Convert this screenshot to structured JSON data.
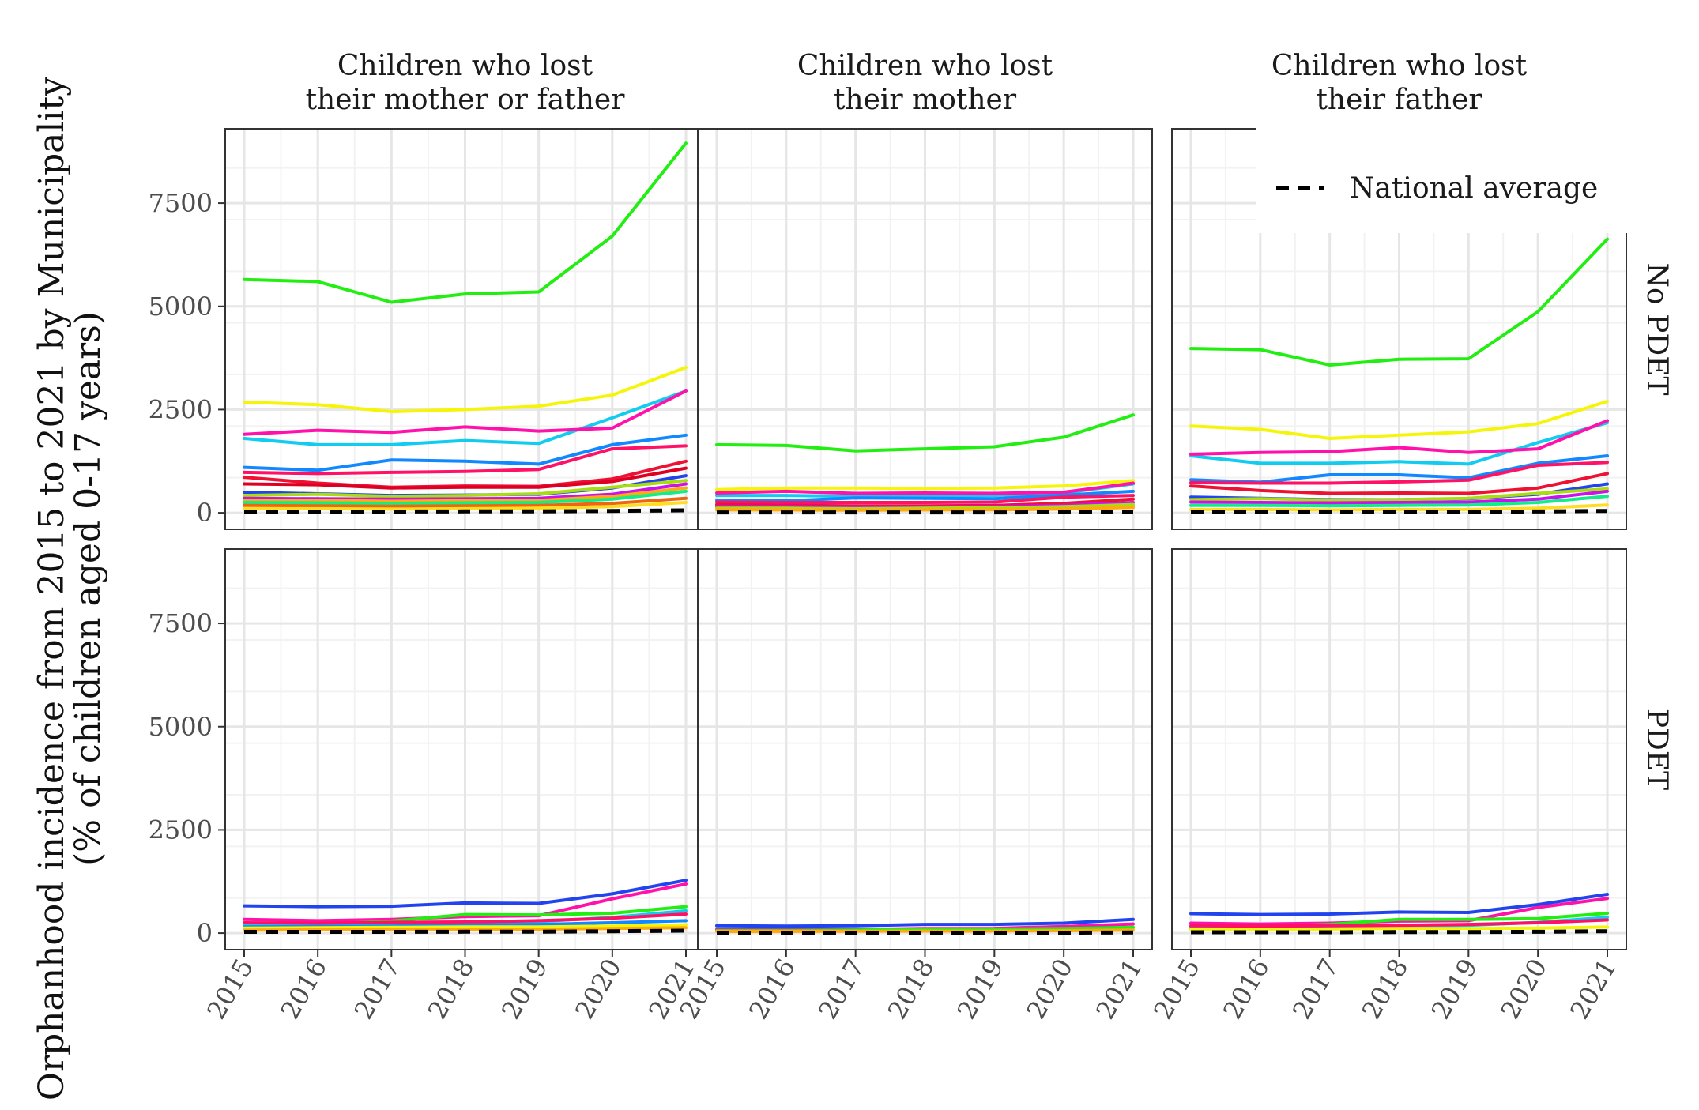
{
  "figure": {
    "ylabel_line1": "Orphanhood incidence from 2015 to 2021 by Municipality",
    "ylabel_line2": "(% of children aged 0-17 years)",
    "legend_label": "National average"
  },
  "chart_data": {
    "type": "line",
    "x": [
      2015,
      2016,
      2017,
      2018,
      2019,
      2020,
      2021
    ],
    "ylim": [
      -400,
      9300
    ],
    "yticks": [
      0,
      2500,
      5000,
      7500
    ],
    "grid": true,
    "legend_placement": "top-right",
    "columns": [
      [
        "Children who lost",
        "their mother or father"
      ],
      [
        "Children who lost",
        "their mother"
      ],
      [
        "Children who lost",
        "their father"
      ]
    ],
    "rows": [
      "No PDET",
      "PDET"
    ],
    "legend": [
      {
        "label": "National average",
        "style": "dashed",
        "color": "#000000"
      }
    ],
    "panels": [
      {
        "row": "No PDET",
        "column": 0,
        "series": [
          {
            "color": "#22ee11",
            "values": [
              5650,
              5600,
              5100,
              5300,
              5350,
              6700,
              8950
            ]
          },
          {
            "color": "#f5f50a",
            "values": [
              2680,
              2620,
              2450,
              2500,
              2580,
              2850,
              3520
            ]
          },
          {
            "color": "#11ccee",
            "values": [
              1800,
              1650,
              1650,
              1750,
              1680,
              2300,
              2950
            ]
          },
          {
            "color": "#ff11aa",
            "values": [
              1900,
              2000,
              1950,
              2080,
              1980,
              2050,
              2950
            ]
          },
          {
            "color": "#1188ff",
            "values": [
              1100,
              1030,
              1280,
              1250,
              1180,
              1650,
              1880
            ]
          },
          {
            "color": "#ff1166",
            "values": [
              980,
              950,
              980,
              1000,
              1050,
              1550,
              1620
            ]
          },
          {
            "color": "#ee1133",
            "values": [
              860,
              720,
              620,
              650,
              640,
              820,
              1250
            ]
          },
          {
            "color": "#dd0022",
            "values": [
              700,
              680,
              600,
              620,
              620,
              760,
              1080
            ]
          },
          {
            "color": "#2244ee",
            "values": [
              500,
              460,
              420,
              430,
              450,
              600,
              900
            ]
          },
          {
            "color": "#aadd11",
            "values": [
              420,
              450,
              400,
              420,
              460,
              620,
              780
            ]
          },
          {
            "color": "#cc11ee",
            "values": [
              350,
              340,
              330,
              340,
              350,
              450,
              700
            ]
          },
          {
            "color": "#ffaa11",
            "values": [
              300,
              300,
              280,
              290,
              300,
              400,
              600
            ]
          },
          {
            "color": "#11ee88",
            "values": [
              250,
              240,
              230,
              240,
              250,
              330,
              520
            ]
          },
          {
            "color": "#ee6611",
            "values": [
              180,
              170,
              160,
              170,
              180,
              230,
              350
            ]
          },
          {
            "color": "#ffdd22",
            "values": [
              100,
              100,
              90,
              100,
              110,
              150,
              250
            ]
          }
        ],
        "national_average": [
          30,
          30,
          30,
          35,
          35,
          45,
          60
        ]
      },
      {
        "row": "No PDET",
        "column": 1,
        "series": [
          {
            "color": "#22ee11",
            "values": [
              1650,
              1630,
              1500,
              1550,
              1600,
              1830,
              2370
            ]
          },
          {
            "color": "#f5f50a",
            "values": [
              560,
              600,
              600,
              590,
              600,
              650,
              780
            ]
          },
          {
            "color": "#11ccee",
            "values": [
              420,
              420,
              400,
              410,
              420,
              480,
              700
            ]
          },
          {
            "color": "#ff11aa",
            "values": [
              480,
              520,
              470,
              480,
              470,
              500,
              720
            ]
          },
          {
            "color": "#1188ff",
            "values": [
              300,
              290,
              360,
              350,
              340,
              430,
              520
            ]
          },
          {
            "color": "#ff1166",
            "values": [
              260,
              250,
              250,
              250,
              260,
              380,
              420
            ]
          },
          {
            "color": "#ee1133",
            "values": [
              200,
              180,
              170,
              170,
              180,
              230,
              330
            ]
          },
          {
            "color": "#cc11ee",
            "values": [
              150,
              150,
              140,
              140,
              150,
              180,
              250
            ]
          },
          {
            "color": "#aadd11",
            "values": [
              110,
              110,
              100,
              110,
              120,
              150,
              200
            ]
          },
          {
            "color": "#ffaa11",
            "values": [
              70,
              70,
              65,
              70,
              75,
              90,
              130
            ]
          }
        ],
        "national_average": [
          10,
          10,
          10,
          10,
          10,
          12,
          15
        ]
      },
      {
        "row": "No PDET",
        "column": 2,
        "series": [
          {
            "color": "#22ee11",
            "values": [
              3980,
              3950,
              3580,
              3720,
              3730,
              4870,
              6630
            ]
          },
          {
            "color": "#f5f50a",
            "values": [
              2100,
              2020,
              1800,
              1880,
              1960,
              2160,
              2700
            ]
          },
          {
            "color": "#11ccee",
            "values": [
              1380,
              1200,
              1200,
              1240,
              1180,
              1700,
              2180
            ]
          },
          {
            "color": "#ff11aa",
            "values": [
              1420,
              1460,
              1480,
              1580,
              1460,
              1550,
              2230
            ]
          },
          {
            "color": "#1188ff",
            "values": [
              800,
              740,
              920,
              920,
              850,
              1200,
              1380
            ]
          },
          {
            "color": "#ff1166",
            "values": [
              730,
              720,
              720,
              750,
              790,
              1150,
              1220
            ]
          },
          {
            "color": "#ee1133",
            "values": [
              650,
              540,
              470,
              480,
              470,
              600,
              950
            ]
          },
          {
            "color": "#2244ee",
            "values": [
              380,
              350,
              320,
              320,
              340,
              450,
              700
            ]
          },
          {
            "color": "#aadd11",
            "values": [
              320,
              340,
              310,
              320,
              350,
              470,
              580
            ]
          },
          {
            "color": "#cc11ee",
            "values": [
              260,
              250,
              240,
              250,
              260,
              330,
              520
            ]
          },
          {
            "color": "#11ee88",
            "values": [
              180,
              180,
              170,
              180,
              190,
              250,
              400
            ]
          },
          {
            "color": "#ffdd22",
            "values": [
              80,
              80,
              70,
              80,
              80,
              110,
              190
            ]
          }
        ],
        "national_average": [
          20,
          20,
          20,
          25,
          25,
          33,
          45
        ]
      },
      {
        "row": "PDET",
        "column": 0,
        "series": [
          {
            "color": "#2244ee",
            "values": [
              660,
              640,
              650,
              730,
              720,
              950,
              1280
            ]
          },
          {
            "color": "#ff11aa",
            "values": [
              330,
              300,
              330,
              400,
              420,
              830,
              1190
            ]
          },
          {
            "color": "#22ee11",
            "values": [
              200,
              210,
              290,
              450,
              440,
              480,
              640
            ]
          },
          {
            "color": "#11ccee",
            "values": [
              180,
              190,
              210,
              250,
              280,
              380,
              540
            ]
          },
          {
            "color": "#ff1166",
            "values": [
              250,
              240,
              260,
              270,
              300,
              360,
              460
            ]
          },
          {
            "color": "#1188ff",
            "values": [
              150,
              160,
              170,
              200,
              210,
              250,
              300
            ]
          },
          {
            "color": "#f5f50a",
            "values": [
              120,
              130,
              140,
              150,
              150,
              170,
              200
            ]
          },
          {
            "color": "#ffaa11",
            "values": [
              70,
              80,
              85,
              90,
              95,
              110,
              130
            ]
          }
        ],
        "national_average": [
          30,
          30,
          30,
          35,
          35,
          45,
          60
        ]
      },
      {
        "row": "PDET",
        "column": 1,
        "series": [
          {
            "color": "#2244ee",
            "values": [
              180,
              170,
              180,
              210,
              210,
              240,
              330
            ]
          },
          {
            "color": "#ff11aa",
            "values": [
              90,
              85,
              90,
              110,
              115,
              160,
              220
            ]
          },
          {
            "color": "#22ee11",
            "values": [
              60,
              60,
              70,
              100,
              100,
              110,
              140
            ]
          },
          {
            "color": "#ffaa11",
            "values": [
              40,
              40,
              45,
              50,
              50,
              60,
              75
            ]
          }
        ],
        "national_average": [
          10,
          10,
          10,
          10,
          10,
          12,
          15
        ]
      },
      {
        "row": "PDET",
        "column": 2,
        "series": [
          {
            "color": "#2244ee",
            "values": [
              470,
              450,
              460,
              510,
              500,
              690,
              940
            ]
          },
          {
            "color": "#ff11aa",
            "values": [
              240,
              220,
              240,
              290,
              300,
              620,
              840
            ]
          },
          {
            "color": "#22ee11",
            "values": [
              150,
              150,
              210,
              330,
              330,
              350,
              480
            ]
          },
          {
            "color": "#11ccee",
            "values": [
              120,
              130,
              150,
              170,
              190,
              260,
              380
            ]
          },
          {
            "color": "#ff1166",
            "values": [
              180,
              170,
              180,
              190,
              210,
              250,
              320
            ]
          },
          {
            "color": "#f5f50a",
            "values": [
              80,
              90,
              100,
              110,
              110,
              120,
              150
            ]
          }
        ],
        "national_average": [
          20,
          20,
          20,
          25,
          25,
          33,
          45
        ]
      }
    ]
  }
}
